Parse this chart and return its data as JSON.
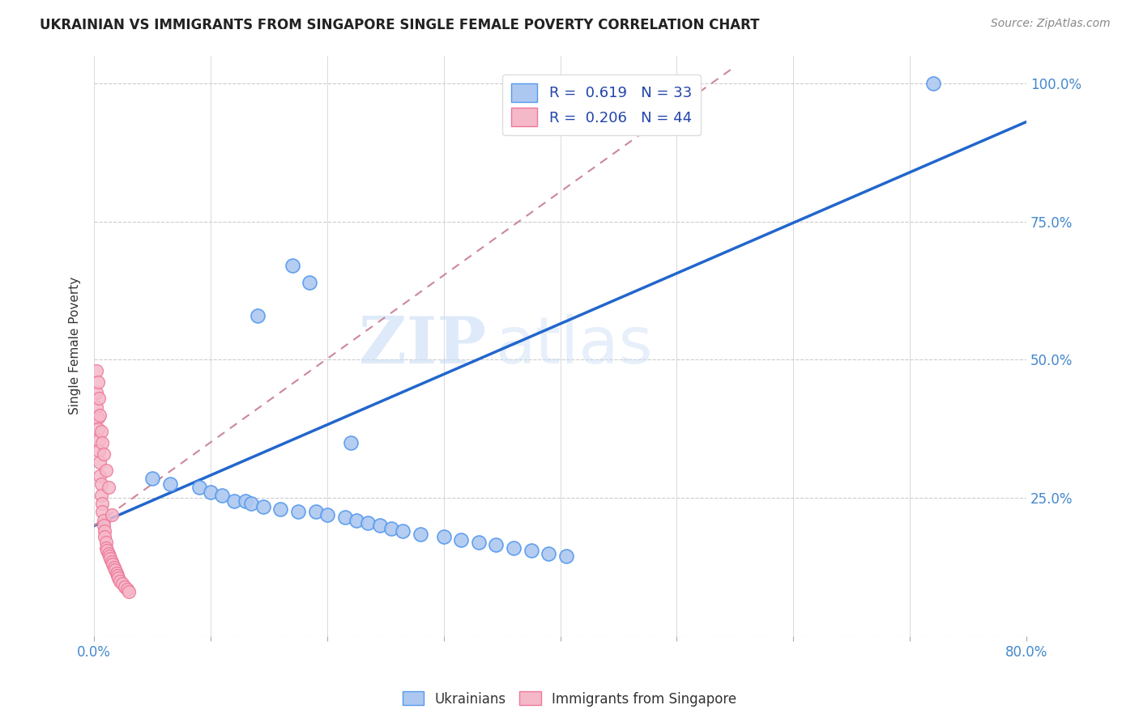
{
  "title": "UKRAINIAN VS IMMIGRANTS FROM SINGAPORE SINGLE FEMALE POVERTY CORRELATION CHART",
  "source": "Source: ZipAtlas.com",
  "ylabel": "Single Female Poverty",
  "xlim": [
    0.0,
    0.8
  ],
  "ylim": [
    0.0,
    1.05
  ],
  "blue_R": 0.619,
  "blue_N": 33,
  "pink_R": 0.206,
  "pink_N": 44,
  "blue_color": "#adc8f0",
  "blue_edge_color": "#5599ee",
  "pink_color": "#f5b8c8",
  "pink_edge_color": "#ee7799",
  "blue_line_color": "#2266cc",
  "pink_trend_color": "#cc8899",
  "watermark_zip": "ZIP",
  "watermark_atlas": "atlas",
  "blue_scatter_x": [
    0.17,
    0.185,
    0.05,
    0.065,
    0.09,
    0.1,
    0.11,
    0.12,
    0.13,
    0.135,
    0.145,
    0.16,
    0.175,
    0.19,
    0.2,
    0.215,
    0.225,
    0.235,
    0.245,
    0.255,
    0.265,
    0.28,
    0.3,
    0.315,
    0.33,
    0.345,
    0.36,
    0.375,
    0.39,
    0.405,
    0.72,
    0.14,
    0.22
  ],
  "blue_scatter_y": [
    0.67,
    0.64,
    0.285,
    0.275,
    0.27,
    0.26,
    0.255,
    0.245,
    0.245,
    0.24,
    0.235,
    0.23,
    0.225,
    0.225,
    0.22,
    0.215,
    0.21,
    0.205,
    0.2,
    0.195,
    0.19,
    0.185,
    0.18,
    0.175,
    0.17,
    0.165,
    0.16,
    0.155,
    0.15,
    0.145,
    1.0,
    0.58,
    0.35
  ],
  "pink_scatter_x": [
    0.002,
    0.002,
    0.003,
    0.003,
    0.004,
    0.004,
    0.005,
    0.005,
    0.006,
    0.006,
    0.007,
    0.007,
    0.008,
    0.008,
    0.009,
    0.009,
    0.01,
    0.01,
    0.011,
    0.012,
    0.013,
    0.014,
    0.015,
    0.016,
    0.017,
    0.018,
    0.019,
    0.02,
    0.021,
    0.022,
    0.024,
    0.026,
    0.028,
    0.03,
    0.002,
    0.003,
    0.004,
    0.005,
    0.006,
    0.007,
    0.008,
    0.01,
    0.012,
    0.015
  ],
  "pink_scatter_y": [
    0.44,
    0.415,
    0.395,
    0.375,
    0.355,
    0.335,
    0.315,
    0.29,
    0.275,
    0.255,
    0.24,
    0.225,
    0.21,
    0.2,
    0.19,
    0.18,
    0.17,
    0.16,
    0.155,
    0.15,
    0.145,
    0.14,
    0.135,
    0.13,
    0.125,
    0.12,
    0.115,
    0.11,
    0.105,
    0.1,
    0.095,
    0.09,
    0.085,
    0.08,
    0.48,
    0.46,
    0.43,
    0.4,
    0.37,
    0.35,
    0.33,
    0.3,
    0.27,
    0.22
  ],
  "blue_trend_x": [
    0.0,
    0.8
  ],
  "blue_trend_y": [
    0.2,
    0.93
  ],
  "pink_trend_x": [
    0.0,
    0.55
  ],
  "pink_trend_y": [
    0.2,
    1.03
  ]
}
